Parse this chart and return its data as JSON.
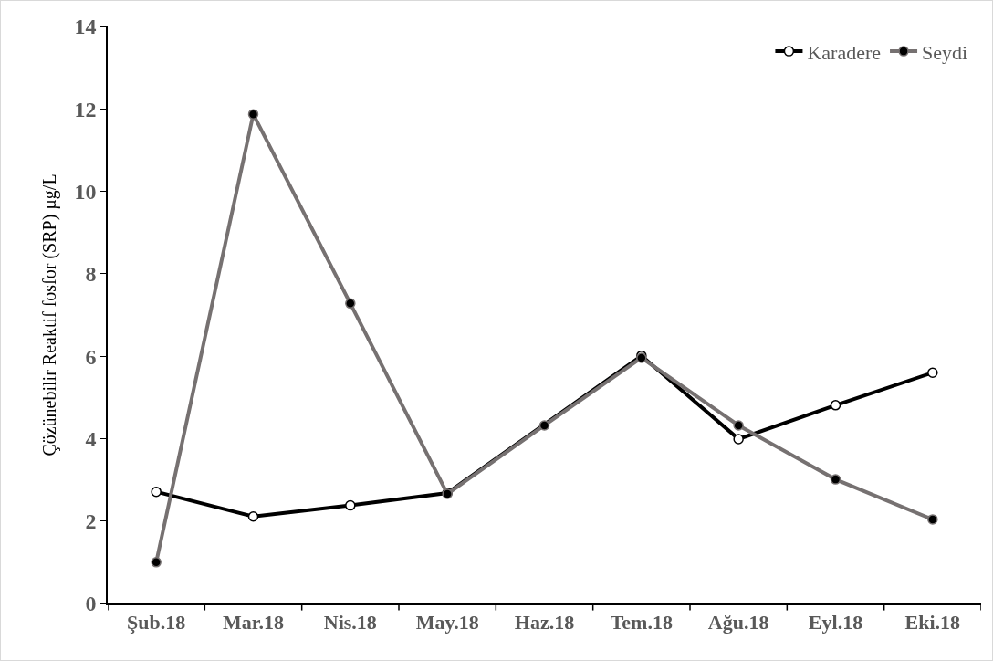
{
  "chart_data": {
    "type": "line",
    "ylabel": "Çözünebilir Reaktif fosfor (SRP) µg/L",
    "categories": [
      "Şub.18",
      "Mar.18",
      "Nis.18",
      "May.18",
      "Haz.18",
      "Tem.18",
      "Ağu.18",
      "Eyl.18",
      "Eki.18"
    ],
    "series": [
      {
        "name": "Karadere",
        "color": "#000000",
        "values": [
          2.71,
          2.11,
          2.38,
          2.68,
          null,
          6.01,
          3.99,
          4.81,
          5.6
        ]
      },
      {
        "name": "Seydi",
        "color": "#767171",
        "values": [
          1.0,
          11.87,
          7.28,
          2.66,
          4.32,
          5.96,
          4.32,
          3.01,
          2.04
        ]
      }
    ],
    "ylim": [
      0,
      14
    ],
    "yticks": [
      0,
      2,
      4,
      6,
      8,
      10,
      12,
      14
    ],
    "grid": false,
    "legend": "top right",
    "marker": "circle",
    "line_style": "solid"
  }
}
